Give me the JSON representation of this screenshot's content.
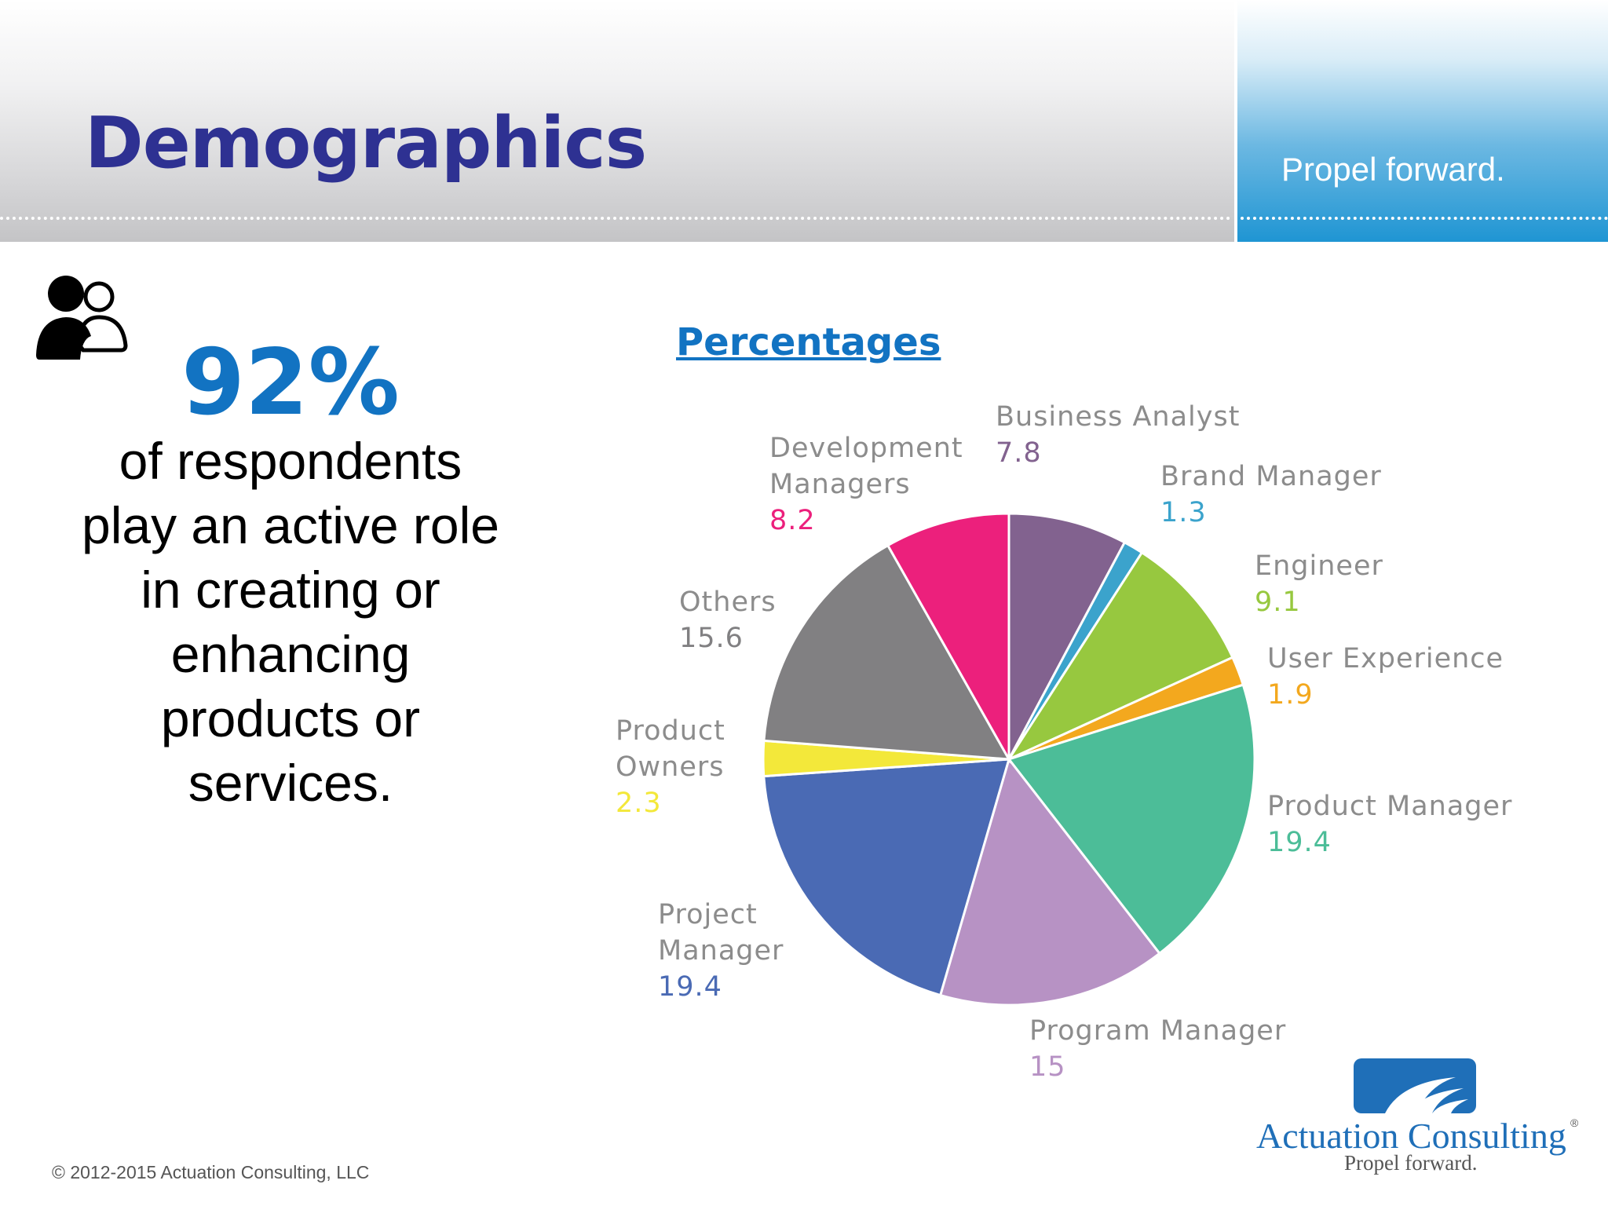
{
  "header": {
    "title": "Demographics",
    "tagline": "Propel forward."
  },
  "stat": {
    "value": "92%",
    "lines": [
      "of respondents",
      "play an active role",
      "in creating or",
      "enhancing",
      "products or",
      "services."
    ]
  },
  "icons": {
    "people": "people-icon"
  },
  "chart_data": {
    "type": "pie",
    "title": "Percentages",
    "unit": "percent",
    "slices": [
      {
        "label": "Business Analyst",
        "value": 7.8,
        "display": "7.8",
        "color": "#82628f"
      },
      {
        "label": "Brand Manager",
        "value": 1.3,
        "display": "1.3",
        "color": "#3ba3cc"
      },
      {
        "label": "Engineer",
        "value": 9.1,
        "display": "9.1",
        "color": "#97c83f"
      },
      {
        "label": "User Experience",
        "value": 1.9,
        "display": "1.9",
        "color": "#f3a81e"
      },
      {
        "label": "Product Manager",
        "value": 19.4,
        "display": "19.4",
        "color": "#4cbd98"
      },
      {
        "label": "Program Manager",
        "value": 15,
        "display": "15",
        "color": "#b792c4"
      },
      {
        "label": "Project Manager",
        "value": 19.4,
        "display": "19.4",
        "color": "#4a6ab4"
      },
      {
        "label": "Product Owners",
        "value": 2.3,
        "display": "2.3",
        "color": "#f3e83a"
      },
      {
        "label": "Others",
        "value": 15.6,
        "display": "15.6",
        "color": "#818082"
      },
      {
        "label": "Development Managers",
        "value": 8.2,
        "display": "8.2",
        "color": "#ec207c"
      }
    ]
  },
  "footer": {
    "copyright": "© 2012-2015 Actuation Consulting, LLC"
  },
  "logo": {
    "name": "Actuation Consulting",
    "tagline": "Propel forward.",
    "registered": "®",
    "brand_color": "#1f6fb8"
  }
}
